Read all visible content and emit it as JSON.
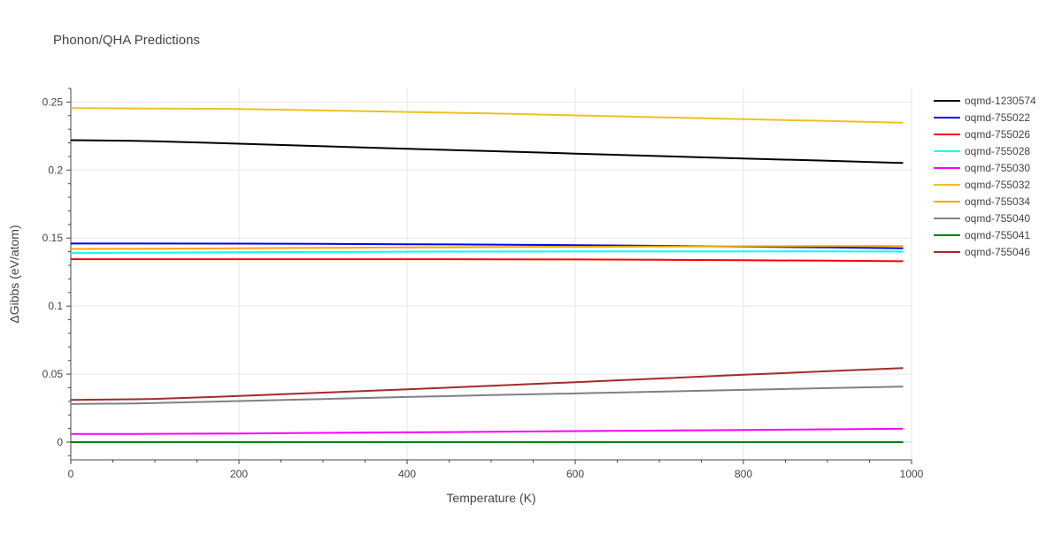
{
  "chart_data": {
    "type": "line",
    "title": "Phonon/QHA Predictions",
    "xlabel": "Temperature (K)",
    "ylabel": "ΔGibbs (eV/atom)",
    "xlim": [
      0,
      1000
    ],
    "ylim": [
      -0.013,
      0.26
    ],
    "x_ticks": [
      0,
      200,
      400,
      600,
      800,
      1000
    ],
    "x_tick_labels": [
      "0",
      "200",
      "400",
      "600",
      "800",
      "1000"
    ],
    "y_ticks": [
      0,
      0.05,
      0.1,
      0.15,
      0.2,
      0.25
    ],
    "y_tick_labels": [
      "0",
      "0.05",
      "0.1",
      "0.15",
      "0.2",
      "0.25"
    ],
    "grid": true,
    "legend_position": "right",
    "x": [
      0,
      75,
      100,
      200,
      300,
      400,
      500,
      600,
      700,
      800,
      900,
      990
    ],
    "series": [
      {
        "name": "oqmd-1230574",
        "color": "#000000",
        "values": [
          0.222,
          0.2215,
          0.2212,
          0.2194,
          0.2175,
          0.2157,
          0.2139,
          0.2121,
          0.2103,
          0.2085,
          0.2068,
          0.2052
        ]
      },
      {
        "name": "oqmd-755022",
        "color": "#0000ff",
        "values": [
          0.146,
          0.146,
          0.146,
          0.1459,
          0.1457,
          0.1455,
          0.1452,
          0.1448,
          0.1443,
          0.1437,
          0.1431,
          0.1425
        ]
      },
      {
        "name": "oqmd-755026",
        "color": "#ff0000",
        "values": [
          0.1345,
          0.1345,
          0.1345,
          0.1345,
          0.1345,
          0.1345,
          0.1344,
          0.1343,
          0.134,
          0.1337,
          0.1334,
          0.133
        ]
      },
      {
        "name": "oqmd-755028",
        "color": "#00ffff",
        "values": [
          0.139,
          0.1392,
          0.1393,
          0.1396,
          0.1398,
          0.14,
          0.1401,
          0.1402,
          0.1402,
          0.1402,
          0.1402,
          0.1401
        ]
      },
      {
        "name": "oqmd-755030",
        "color": "#ff00ff",
        "values": [
          0.006,
          0.006,
          0.0061,
          0.0064,
          0.0068,
          0.0072,
          0.0076,
          0.0081,
          0.0085,
          0.009,
          0.0094,
          0.0099
        ]
      },
      {
        "name": "oqmd-755032",
        "color": "#f0c020",
        "values": [
          0.2455,
          0.2453,
          0.2452,
          0.2449,
          0.2438,
          0.2427,
          0.2416,
          0.2402,
          0.2388,
          0.2374,
          0.2361,
          0.2348
        ]
      },
      {
        "name": "oqmd-755034",
        "color": "#ffa500",
        "values": [
          0.142,
          0.1421,
          0.1422,
          0.1425,
          0.1428,
          0.1431,
          0.1434,
          0.1436,
          0.1438,
          0.144,
          0.1441,
          0.1441
        ]
      },
      {
        "name": "oqmd-755040",
        "color": "#808080",
        "values": [
          0.028,
          0.0285,
          0.0287,
          0.0302,
          0.0317,
          0.0332,
          0.0346,
          0.0358,
          0.0371,
          0.0384,
          0.0397,
          0.0408
        ]
      },
      {
        "name": "oqmd-755041",
        "color": "#008000",
        "values": [
          0,
          0,
          0,
          0,
          0,
          0,
          0,
          0,
          0,
          0,
          0,
          0
        ]
      },
      {
        "name": "oqmd-755046",
        "color": "#a52a2a",
        "values": [
          0.031,
          0.0315,
          0.0318,
          0.0339,
          0.0364,
          0.0389,
          0.0414,
          0.0441,
          0.0468,
          0.0495,
          0.0521,
          0.0545
        ]
      }
    ]
  }
}
